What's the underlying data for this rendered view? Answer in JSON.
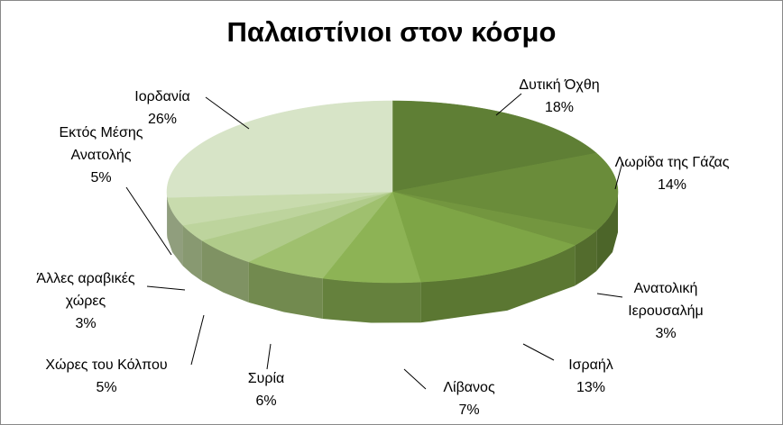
{
  "chart_data": {
    "type": "pie",
    "title": "Παλαιστίνιοι στον κόσμο",
    "categories": [
      "Δυτική Όχθη",
      "Λωρίδα της Γάζας",
      "Ανατολική Ιερουσαλήμ",
      "Ισραήλ",
      "Λίβανος",
      "Συρία",
      "Χώρες του Κόλπου",
      "Άλλες αραβικές χώρες",
      "Εκτός Μέσης Ανατολής",
      "Ιορδανία"
    ],
    "values": [
      18,
      14,
      3,
      13,
      7,
      6,
      5,
      3,
      5,
      26
    ],
    "value_labels": [
      "18%",
      "14%",
      "3%",
      "13%",
      "7%",
      "6%",
      "5%",
      "3%",
      "5%",
      "26%"
    ],
    "colors": [
      "#5f7f35",
      "#6a8c3a",
      "#73963f",
      "#7ea546",
      "#8db355",
      "#9fc06e",
      "#b0cb8a",
      "#bdd49d",
      "#c8dbad",
      "#d7e4c7"
    ]
  }
}
